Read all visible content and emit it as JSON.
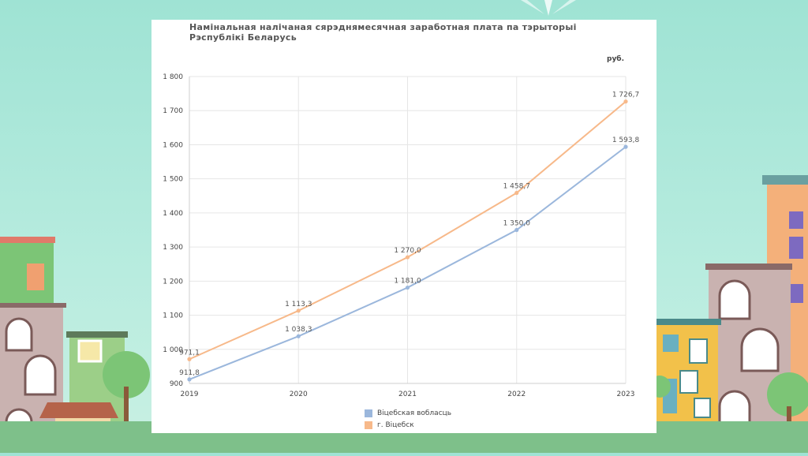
{
  "chart_data": {
    "type": "line",
    "title": "Намінальная налічаная сярэднямесячная заработная плата па тэрыторыі Рэспублікі Беларусь",
    "unit": "руб.",
    "x": [
      "2019",
      "2020",
      "2021",
      "2022",
      "2023"
    ],
    "ylim": [
      900,
      1800
    ],
    "yticks": [
      "900",
      "1 000",
      "1 100",
      "1 200",
      "1 300",
      "1 400",
      "1 500",
      "1 600",
      "1 700",
      "1 800"
    ],
    "grid": true,
    "legend_position": "bottom",
    "series": [
      {
        "name": "Віцебская вобласць",
        "color": "#9bb7dc",
        "values": [
          911.8,
          1038.3,
          1181.0,
          1350.0,
          1593.8
        ],
        "labels": [
          "911,8",
          "1 038,3",
          "1 181,0",
          "1 350,0",
          "1 593,8"
        ]
      },
      {
        "name": "г. Віцебск",
        "color": "#f7b98a",
        "values": [
          971.1,
          1113.3,
          1270.0,
          1458.7,
          1726.7
        ],
        "labels": [
          "971,1",
          "1 113,3",
          "1 270,0",
          "1 458,7",
          "1 726,7"
        ]
      }
    ]
  }
}
